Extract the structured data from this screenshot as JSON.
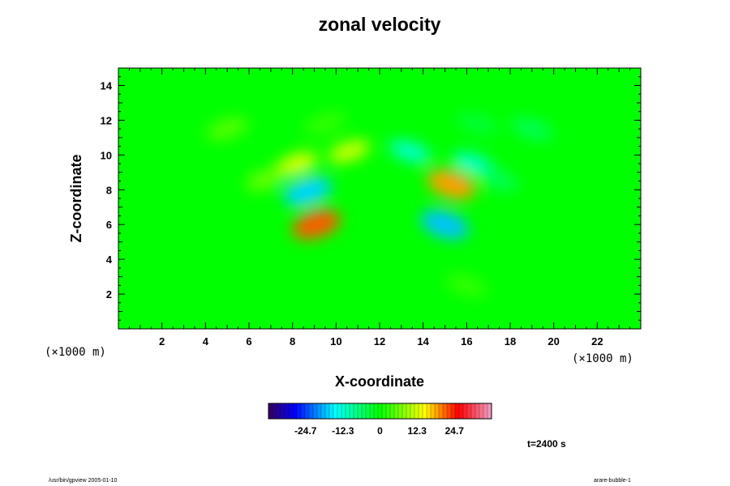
{
  "chart_data": {
    "type": "heatmap",
    "title": "zonal velocity",
    "xlabel": "X-coordinate",
    "ylabel": "Z-coordinate",
    "x_unit": "(×1000 m)",
    "z_unit": "(×1000 m)",
    "xlim": [
      0,
      24
    ],
    "ylim": [
      0,
      15
    ],
    "x_ticks": [
      2,
      4,
      6,
      8,
      10,
      12,
      14,
      16,
      18,
      20,
      22
    ],
    "y_ticks": [
      2,
      4,
      6,
      8,
      10,
      12,
      14
    ],
    "colorbar": {
      "range": [
        -37,
        37
      ],
      "tick_values": [
        -24.7,
        -12.3,
        0,
        12.3,
        24.7
      ],
      "tick_labels": [
        "-24.7",
        "-12.3",
        "0",
        "12.3",
        "24.7"
      ]
    },
    "features": [
      {
        "x": 8.7,
        "z": 7.9,
        "value": -17
      },
      {
        "x": 15.3,
        "z": 8.3,
        "value": 19
      },
      {
        "x": 9.1,
        "z": 6.0,
        "value": 22
      },
      {
        "x": 15.0,
        "z": 6.0,
        "value": -18
      },
      {
        "x": 8.2,
        "z": 9.5,
        "value": 13
      },
      {
        "x": 16.3,
        "z": 9.5,
        "value": -12
      },
      {
        "x": 10.6,
        "z": 10.2,
        "value": 12
      },
      {
        "x": 13.4,
        "z": 10.2,
        "value": -12
      },
      {
        "x": 6.8,
        "z": 8.6,
        "value": 6
      },
      {
        "x": 17.4,
        "z": 8.6,
        "value": -5
      },
      {
        "x": 5.0,
        "z": 11.5,
        "value": 5
      },
      {
        "x": 19.0,
        "z": 11.5,
        "value": -5
      },
      {
        "x": 9.5,
        "z": 11.8,
        "value": 3
      },
      {
        "x": 16.5,
        "z": 11.8,
        "value": -3
      },
      {
        "x": 16.0,
        "z": 2.5,
        "value": 3
      }
    ],
    "time_label": "t=2400 s"
  },
  "footer": {
    "left": "/usr/bin/gpview 2005-01-10",
    "right": "arare-bubble-1"
  }
}
